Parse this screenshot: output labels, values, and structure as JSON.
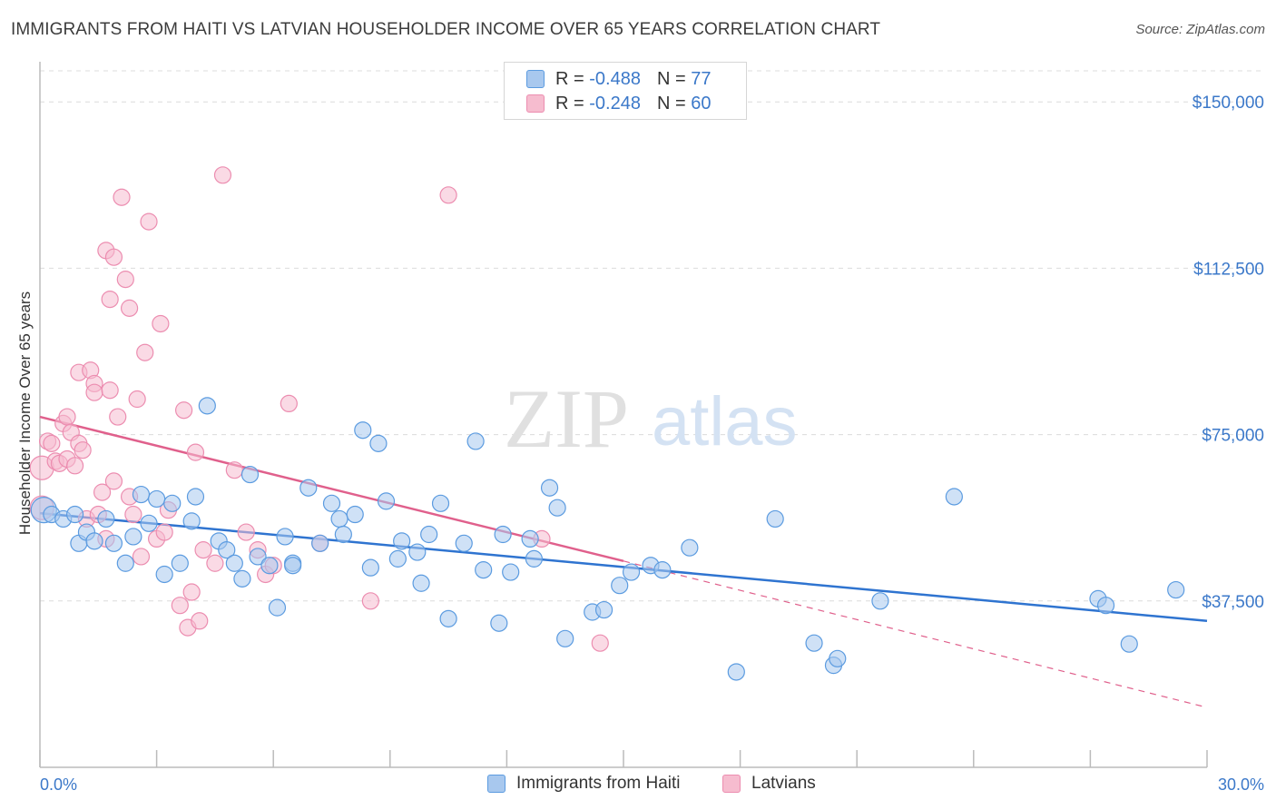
{
  "title": "IMMIGRANTS FROM HAITI VS LATVIAN HOUSEHOLDER INCOME OVER 65 YEARS CORRELATION CHART",
  "source": "Source: ZipAtlas.com",
  "watermark": {
    "zip": "ZIP",
    "atlas": "atlas"
  },
  "legend_stats": [
    {
      "r_label": "R = ",
      "r_value": "-0.488",
      "n_label": "N = ",
      "n_value": "77"
    },
    {
      "r_label": "R = ",
      "r_value": "-0.248",
      "n_label": "N = ",
      "n_value": "60"
    }
  ],
  "bottom_legend": [
    "Immigrants from Haiti",
    "Latvians"
  ],
  "colors": {
    "blue_fill": "#a8c8ee",
    "blue_stroke": "#5b9be0",
    "blue_line": "#2f74d0",
    "pink_fill": "#f6bccf",
    "pink_stroke": "#ec8db0",
    "pink_line": "#e0608c",
    "axis_text": "#3b78c9",
    "grid": "#dcdcdc"
  },
  "chart_data": {
    "type": "scatter",
    "title": "IMMIGRANTS FROM HAITI VS LATVIAN HOUSEHOLDER INCOME OVER 65 YEARS CORRELATION CHART",
    "xlabel": "",
    "ylabel": "Householder Income Over 65 years",
    "xlim": [
      0,
      30
    ],
    "ylim": [
      0,
      157000
    ],
    "x_tick_labels": [
      "0.0%",
      "30.0%"
    ],
    "y_ticks": [
      37500,
      75000,
      112500,
      150000
    ],
    "y_tick_labels": [
      "$37,500",
      "$75,000",
      "$112,500",
      "$150,000"
    ],
    "grid": true,
    "legend_position": "top-center",
    "series": [
      {
        "name": "Immigrants from Haiti",
        "r": -0.488,
        "n": 77,
        "trend": {
          "x": [
            0,
            30
          ],
          "y": [
            57300,
            33000
          ]
        },
        "points": [
          [
            0.1,
            58000
          ],
          [
            0.3,
            57000
          ],
          [
            0.6,
            56000
          ],
          [
            0.9,
            57000
          ],
          [
            1.0,
            50500
          ],
          [
            1.2,
            53000
          ],
          [
            1.4,
            51000
          ],
          [
            1.7,
            56000
          ],
          [
            1.9,
            50500
          ],
          [
            2.2,
            46000
          ],
          [
            2.4,
            52000
          ],
          [
            2.6,
            61500
          ],
          [
            2.8,
            55000
          ],
          [
            3.0,
            60500
          ],
          [
            3.2,
            43500
          ],
          [
            3.4,
            59500
          ],
          [
            3.6,
            46000
          ],
          [
            3.9,
            55500
          ],
          [
            4.0,
            61000
          ],
          [
            4.3,
            81500
          ],
          [
            4.6,
            51000
          ],
          [
            4.8,
            49000
          ],
          [
            5.0,
            46000
          ],
          [
            5.2,
            42500
          ],
          [
            5.4,
            66000
          ],
          [
            5.6,
            47500
          ],
          [
            5.9,
            45500
          ],
          [
            6.1,
            36000
          ],
          [
            6.3,
            52000
          ],
          [
            6.5,
            46000
          ],
          [
            6.9,
            63000
          ],
          [
            7.2,
            50500
          ],
          [
            7.5,
            59500
          ],
          [
            7.7,
            56000
          ],
          [
            7.8,
            52500
          ],
          [
            8.1,
            57000
          ],
          [
            8.3,
            76000
          ],
          [
            8.5,
            45000
          ],
          [
            8.7,
            73000
          ],
          [
            8.9,
            60000
          ],
          [
            9.2,
            47000
          ],
          [
            9.3,
            51000
          ],
          [
            9.7,
            48500
          ],
          [
            9.8,
            41500
          ],
          [
            10.0,
            52500
          ],
          [
            10.3,
            59500
          ],
          [
            10.5,
            33500
          ],
          [
            10.9,
            50500
          ],
          [
            11.2,
            73500
          ],
          [
            11.4,
            44500
          ],
          [
            11.8,
            32500
          ],
          [
            11.9,
            52500
          ],
          [
            12.1,
            44000
          ],
          [
            12.6,
            51500
          ],
          [
            12.7,
            47000
          ],
          [
            13.1,
            63000
          ],
          [
            13.3,
            58500
          ],
          [
            13.5,
            29000
          ],
          [
            14.2,
            35000
          ],
          [
            14.5,
            35500
          ],
          [
            14.9,
            41000
          ],
          [
            15.7,
            45500
          ],
          [
            16.0,
            44500
          ],
          [
            16.7,
            49500
          ],
          [
            17.9,
            21500
          ],
          [
            18.9,
            56000
          ],
          [
            19.9,
            28000
          ],
          [
            20.4,
            23000
          ],
          [
            20.5,
            24500
          ],
          [
            21.6,
            37500
          ],
          [
            23.5,
            61000
          ],
          [
            27.2,
            38000
          ],
          [
            27.4,
            36500
          ],
          [
            28.0,
            27800
          ],
          [
            29.2,
            40000
          ],
          [
            15.2,
            44000
          ],
          [
            6.5,
            45500
          ]
        ]
      },
      {
        "name": "Latvians",
        "r": -0.248,
        "n": 60,
        "trend": {
          "x": [
            0,
            15
          ],
          "y": [
            79000,
            46500
          ]
        },
        "trend_extension": {
          "x": [
            15,
            30
          ],
          "y": [
            46500,
            13500
          ]
        },
        "points": [
          [
            0.05,
            58500
          ],
          [
            0.05,
            67500
          ],
          [
            0.2,
            73500
          ],
          [
            0.3,
            73000
          ],
          [
            0.4,
            69000
          ],
          [
            0.5,
            68500
          ],
          [
            0.6,
            77500
          ],
          [
            0.7,
            69500
          ],
          [
            0.7,
            79000
          ],
          [
            0.8,
            75500
          ],
          [
            0.9,
            68000
          ],
          [
            1.0,
            73000
          ],
          [
            1.0,
            89000
          ],
          [
            1.1,
            71500
          ],
          [
            1.2,
            56000
          ],
          [
            1.3,
            89500
          ],
          [
            1.4,
            86500
          ],
          [
            1.4,
            84500
          ],
          [
            1.5,
            57000
          ],
          [
            1.6,
            62000
          ],
          [
            1.7,
            51500
          ],
          [
            1.7,
            116500
          ],
          [
            1.8,
            105500
          ],
          [
            1.8,
            85000
          ],
          [
            1.9,
            115000
          ],
          [
            1.9,
            64500
          ],
          [
            2.0,
            79000
          ],
          [
            2.1,
            128500
          ],
          [
            2.2,
            110000
          ],
          [
            2.3,
            103500
          ],
          [
            2.3,
            61000
          ],
          [
            2.4,
            57000
          ],
          [
            2.5,
            83000
          ],
          [
            2.6,
            47500
          ],
          [
            2.7,
            93500
          ],
          [
            2.8,
            123000
          ],
          [
            3.0,
            51500
          ],
          [
            3.1,
            100000
          ],
          [
            3.2,
            53000
          ],
          [
            3.3,
            58000
          ],
          [
            3.6,
            36500
          ],
          [
            3.7,
            80500
          ],
          [
            3.8,
            31500
          ],
          [
            3.9,
            39500
          ],
          [
            4.0,
            71000
          ],
          [
            4.1,
            33000
          ],
          [
            4.2,
            49000
          ],
          [
            4.5,
            46000
          ],
          [
            4.7,
            133500
          ],
          [
            5.0,
            67000
          ],
          [
            5.3,
            53000
          ],
          [
            5.6,
            49000
          ],
          [
            5.8,
            43500
          ],
          [
            6.0,
            45500
          ],
          [
            6.4,
            82000
          ],
          [
            7.2,
            50500
          ],
          [
            8.5,
            37500
          ],
          [
            10.5,
            129000
          ],
          [
            12.9,
            51500
          ],
          [
            14.4,
            28000
          ]
        ]
      }
    ]
  }
}
